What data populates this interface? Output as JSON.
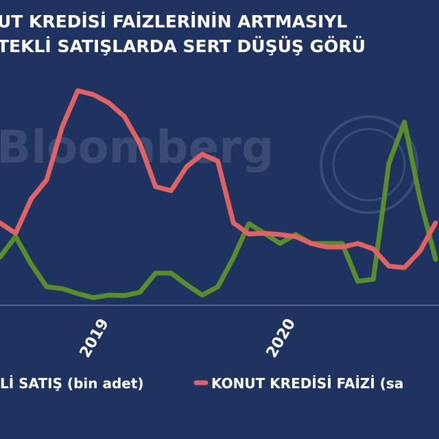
{
  "chart_data": {
    "type": "line",
    "title": [
      "UT KREDİSİ FAİZLERİNİN ARTMASIYL",
      "TEKLİ SATIŞLARDA SERT DÜŞÜŞ GÖRÜ"
    ],
    "watermark": "Bloomberg",
    "categories": [
      null,
      null,
      null,
      null,
      null,
      null,
      null,
      "2019",
      null,
      null,
      null,
      null,
      null,
      null,
      null,
      null,
      null,
      null,
      null,
      "2020",
      null,
      null,
      null,
      null,
      null,
      null,
      null,
      null,
      null
    ],
    "series": [
      {
        "name": "Lİ SATIŞ (bin adet)",
        "color": "#5b8c2a",
        "values": [
          20.3,
          29.0,
          17.4,
          7.8,
          7.0,
          4.9,
          3.2,
          4.3,
          4.1,
          5.5,
          13.6,
          13.6,
          8.7,
          4.3,
          7.8,
          20.0,
          34.5,
          30.4,
          26.1,
          29.9,
          26.1,
          26.1,
          26.1,
          10.1,
          11.0,
          60.0,
          77.4,
          44.9,
          19.4
        ]
      },
      {
        "name": "KONUT KREDİSİ FAİZİ (sa",
        "color": "#e06262",
        "values": [
          34.8,
          30.4,
          44.9,
          53.0,
          75.4,
          90.7,
          89.0,
          85.5,
          79.7,
          68.1,
          50.1,
          48.4,
          58.6,
          63.8,
          60.9,
          34.8,
          30.1,
          30.4,
          29.9,
          29.0,
          26.1,
          24.6,
          24.6,
          26.1,
          23.8,
          16.5,
          15.9,
          22.9,
          34.8
        ]
      }
    ],
    "ylim": [
      0,
      100
    ]
  }
}
